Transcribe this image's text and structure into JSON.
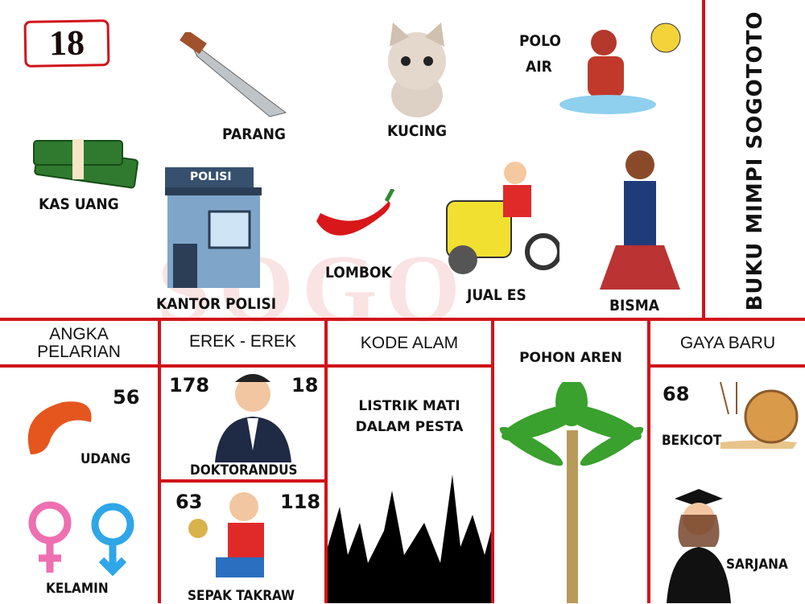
{
  "badge_number": "18",
  "side_title": "BUKU MIMPI SOGOTOTO",
  "watermark": "SOGO",
  "top_items": {
    "kas_uang": "KAS UANG",
    "parang": "PARANG",
    "kucing": "KUCING",
    "polo_air_1": "POLO",
    "polo_air_2": "AIR",
    "kantor_polisi": "KANTOR POLISI",
    "polisi_sign": "POLISI",
    "lombok": "LOMBOK",
    "jual_es": "JUAL ES",
    "bisma": "BISMA"
  },
  "sections": {
    "angka_pelarian": {
      "title_1": "ANGKA",
      "title_2": "PELARIAN",
      "number": "56",
      "item1": "UDANG",
      "item2": "KELAMIN"
    },
    "erek_erek": {
      "title": "EREK - EREK",
      "left_num": "178",
      "right_num": "18",
      "item": "DOKTORANDUS",
      "left_num2": "63",
      "right_num2": "118",
      "item2": "SEPAK TAKRAW"
    },
    "kode_alam": {
      "title": "KODE ALAM",
      "text_1": "LISTRIK MATI",
      "text_2": "DALAM PESTA"
    },
    "pohon_aren": {
      "title": "POHON AREN"
    },
    "gaya_baru": {
      "title": "GAYA BARU",
      "number": "68",
      "item1": "BEKICOT",
      "item2": "SARJANA"
    }
  },
  "colors": {
    "border": "#d0141a"
  }
}
